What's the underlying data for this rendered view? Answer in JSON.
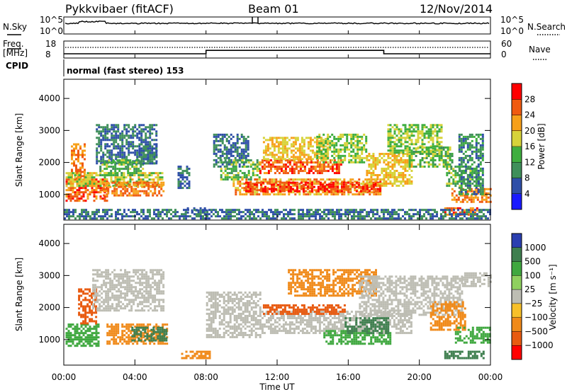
{
  "header": {
    "station": "Pykkvibaer (fitACF)",
    "beam": "Beam 01",
    "date": "12/Nov/2014"
  },
  "aux_panels": {
    "nsky_label": "N.Sky",
    "nsearch_label": "N.Search",
    "freq_label_1": "Freq.",
    "freq_label_2": "[MHz]",
    "nave_label": "Nave",
    "cpid_label": "CPID",
    "cpid_text": "normal (fast stereo) 153",
    "noise_ticks_left": [
      "10^5",
      "10^0"
    ],
    "noise_ticks_right": [
      "10^5",
      "10^0"
    ],
    "freq_ticks_left": [
      "18",
      "8"
    ],
    "nave_ticks_right": [
      "60",
      "0"
    ]
  },
  "colors": {
    "power_scale": [
      "#1a1aff",
      "#2f4fa8",
      "#3f8f5a",
      "#3fae3f",
      "#d7d33a",
      "#f7a01a",
      "#f05a10",
      "#ff0000"
    ],
    "velocity_scale": [
      "#2b3fb0",
      "#3f7f4f",
      "#3fa83f",
      "#8fd05f",
      "#bdbdb3",
      "#f7c02a",
      "#f08a1a",
      "#e85a10",
      "#ff0000"
    ],
    "ground_scatter": "#bdbdb3"
  },
  "chart_data": {
    "type": "heatmap",
    "x_label": "Time UT",
    "x_ticks": [
      "00:00",
      "04:00",
      "08:00",
      "12:00",
      "16:00",
      "20:00",
      "00:00"
    ],
    "x_range_hours": [
      0,
      24
    ],
    "panels": [
      {
        "name": "power",
        "ylabel": "Slant Range [km]",
        "yticks": [
          "1000",
          "2000",
          "3000",
          "4000"
        ],
        "ylim_km": [
          200,
          4600
        ],
        "colorbar_label": "Power [dB]",
        "colorbar_ticks": [
          "4",
          "8",
          "12",
          "16",
          "20",
          "24",
          "28"
        ],
        "colorbar_range": [
          0,
          32
        ],
        "regions": [
          {
            "t": [
              0.1,
              2.4
            ],
            "r": [
              800,
              1500
            ],
            "v": 26
          },
          {
            "t": [
              0.4,
              1.2
            ],
            "r": [
              1500,
              2600
            ],
            "v": 24
          },
          {
            "t": [
              0.1,
              5.6
            ],
            "r": [
              1300,
              1700
            ],
            "v": 18
          },
          {
            "t": [
              2.2,
              5.6
            ],
            "r": [
              1000,
              1400
            ],
            "v": 24
          },
          {
            "t": [
              1.8,
              5.2
            ],
            "r": [
              2000,
              3200
            ],
            "v": 8
          },
          {
            "t": [
              2.0,
              4.4
            ],
            "r": [
              1600,
              2100
            ],
            "v": 14
          },
          {
            "t": [
              4.2,
              5.2
            ],
            "r": [
              2000,
              2600
            ],
            "v": 8
          },
          {
            "t": [
              6.4,
              7.1
            ],
            "r": [
              1200,
              1900
            ],
            "v": 8
          },
          {
            "t": [
              6.8,
              8.2
            ],
            "r": [
              400,
              600
            ],
            "v": 8
          },
          {
            "t": [
              8.4,
              10.4
            ],
            "r": [
              1900,
              2900
            ],
            "v": 8
          },
          {
            "t": [
              8.8,
              11.0
            ],
            "r": [
              1500,
              2100
            ],
            "v": 14
          },
          {
            "t": [
              9.5,
              17.8
            ],
            "r": [
              1000,
              1500
            ],
            "v": 22
          },
          {
            "t": [
              10.2,
              17.8
            ],
            "r": [
              1100,
              1400
            ],
            "v": 28
          },
          {
            "t": [
              11.0,
              15.6
            ],
            "r": [
              1700,
              2100
            ],
            "v": 26
          },
          {
            "t": [
              11.2,
              14.8
            ],
            "r": [
              2100,
              2800
            ],
            "v": 20
          },
          {
            "t": [
              14.2,
              17.0
            ],
            "r": [
              2000,
              2900
            ],
            "v": 16
          },
          {
            "t": [
              17.0,
              19.6
            ],
            "r": [
              1300,
              2300
            ],
            "v": 20
          },
          {
            "t": [
              18.2,
              21.2
            ],
            "r": [
              2300,
              3200
            ],
            "v": 16
          },
          {
            "t": [
              19.4,
              21.8
            ],
            "r": [
              1900,
              2500
            ],
            "v": 14
          },
          {
            "t": [
              21.8,
              24.0
            ],
            "r": [
              800,
              1200
            ],
            "v": 24
          },
          {
            "t": [
              21.5,
              23.4
            ],
            "r": [
              1300,
              1900
            ],
            "v": 14
          },
          {
            "t": [
              22.2,
              23.6
            ],
            "r": [
              1000,
              2900
            ],
            "v": 10
          },
          {
            "t": [
              21.4,
              23.2
            ],
            "r": [
              400,
              600
            ],
            "v": 26
          },
          {
            "t": [
              0.0,
              24.0
            ],
            "r": [
              250,
              550
            ],
            "v": 8
          }
        ]
      },
      {
        "name": "velocity",
        "ylabel": "Slant Range [km]",
        "yticks": [
          "1000",
          "2000",
          "3000",
          "4000"
        ],
        "ylim_km": [
          200,
          4600
        ],
        "colorbar_label": "Velocity [m s⁻¹]",
        "colorbar_ticks": [
          "1000",
          "500",
          "100",
          "25",
          "−25",
          "−100",
          "−500",
          "−1000"
        ],
        "regions": [
          {
            "t": [
              0.1,
              2.0
            ],
            "r": [
              800,
              1500
            ],
            "v": 100
          },
          {
            "t": [
              0.8,
              1.8
            ],
            "r": [
              1500,
              2600
            ],
            "v": -500
          },
          {
            "t": [
              1.6,
              5.6
            ],
            "r": [
              1900,
              3200
            ],
            "v": 0
          },
          {
            "t": [
              2.4,
              5.8
            ],
            "r": [
              900,
              1500
            ],
            "v": -100
          },
          {
            "t": [
              3.8,
              5.8
            ],
            "r": [
              1000,
              1400
            ],
            "v": 500
          },
          {
            "t": [
              6.6,
              8.2
            ],
            "r": [
              400,
              650
            ],
            "v": -100
          },
          {
            "t": [
              8.0,
              11.0
            ],
            "r": [
              1100,
              2500
            ],
            "v": 0
          },
          {
            "t": [
              11.0,
              19.6
            ],
            "r": [
              1200,
              1900
            ],
            "v": 0
          },
          {
            "t": [
              11.2,
              15.8
            ],
            "r": [
              1800,
              2100
            ],
            "v": -500
          },
          {
            "t": [
              12.6,
              17.6
            ],
            "r": [
              2400,
              3200
            ],
            "v": -100
          },
          {
            "t": [
              14.6,
              18.4
            ],
            "r": [
              900,
              1300
            ],
            "v": 100
          },
          {
            "t": [
              15.8,
              18.2
            ],
            "r": [
              1200,
              1700
            ],
            "v": 500
          },
          {
            "t": [
              16.6,
              22.4
            ],
            "r": [
              1800,
              3000
            ],
            "v": 0
          },
          {
            "t": [
              20.6,
              22.6
            ],
            "r": [
              1300,
              2200
            ],
            "v": -100
          },
          {
            "t": [
              22.0,
              24.0
            ],
            "r": [
              900,
              1400
            ],
            "v": 100
          },
          {
            "t": [
              22.4,
              24.0
            ],
            "r": [
              2700,
              3100
            ],
            "v": 0
          },
          {
            "t": [
              21.4,
              23.6
            ],
            "r": [
              400,
              650
            ],
            "v": 500
          }
        ]
      }
    ],
    "nsky_noise": "nearly constant trace just below 10^5 (small rise near 01:00)",
    "frequency_mhz": [
      {
        "t": [
          0.0,
          8.0
        ],
        "f": 10.5
      },
      {
        "t": [
          8.0,
          18.0
        ],
        "f": 12.5
      },
      {
        "t": [
          18.0,
          24.0
        ],
        "f": 10.5
      }
    ],
    "nave": 15
  }
}
